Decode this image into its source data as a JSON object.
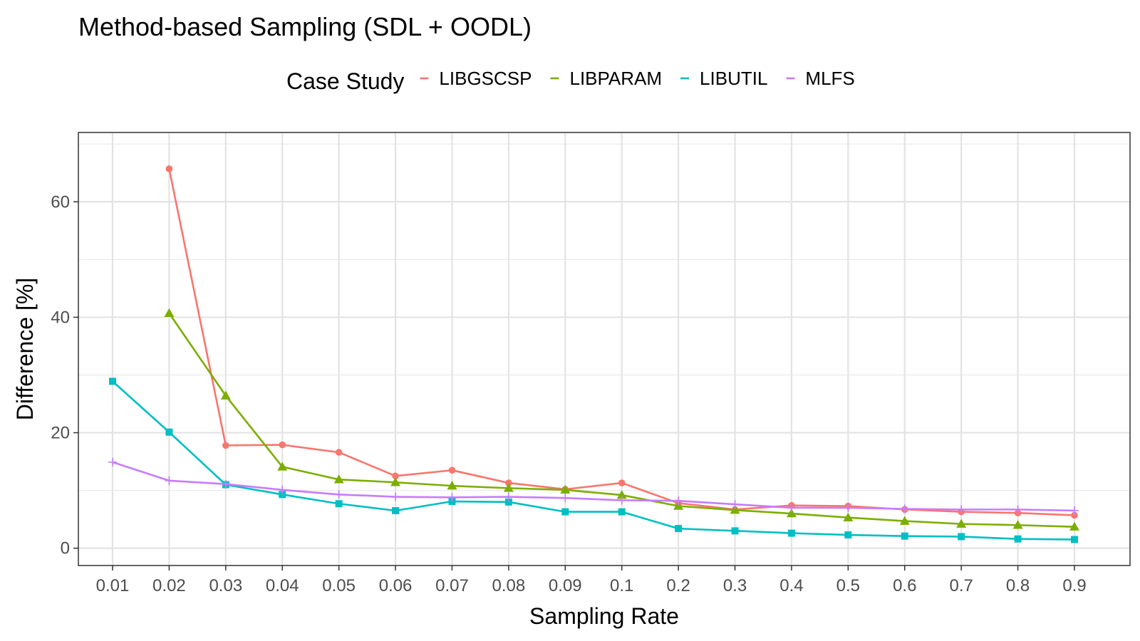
{
  "chart_data": {
    "type": "line",
    "title": "Method-based Sampling (SDL + OODL)",
    "xlabel": "Sampling Rate",
    "ylabel": "Difference [%]",
    "legend_title": "Case Study",
    "legend_position": "top",
    "grid": true,
    "x_scale": "categorical",
    "categories": [
      "0.01",
      "0.02",
      "0.03",
      "0.04",
      "0.05",
      "0.06",
      "0.07",
      "0.08",
      "0.09",
      "0.1",
      "0.2",
      "0.3",
      "0.4",
      "0.5",
      "0.6",
      "0.7",
      "0.8",
      "0.9"
    ],
    "ylim": [
      -3,
      72
    ],
    "yticks": [
      0,
      20,
      40,
      60
    ],
    "series": [
      {
        "name": "LIBGSCSP",
        "color": "#F8766D",
        "marker": "circle",
        "values": [
          null,
          65.7,
          17.8,
          17.9,
          16.6,
          12.5,
          13.5,
          11.3,
          10.2,
          11.3,
          7.8,
          6.7,
          7.4,
          7.3,
          6.7,
          6.3,
          6.1,
          5.7
        ]
      },
      {
        "name": "LIBPARAM",
        "color": "#7CAE00",
        "marker": "triangle",
        "values": [
          null,
          40.7,
          26.4,
          14.1,
          11.9,
          11.4,
          10.8,
          10.4,
          10.1,
          9.2,
          7.3,
          6.6,
          6.0,
          5.3,
          4.7,
          4.2,
          4.0,
          3.7
        ]
      },
      {
        "name": "LIBUTIL",
        "color": "#00BFC4",
        "marker": "square",
        "values": [
          28.9,
          20.1,
          11.0,
          9.3,
          7.7,
          6.5,
          8.1,
          8.0,
          6.3,
          6.3,
          3.4,
          3.0,
          2.6,
          2.3,
          2.1,
          2.0,
          1.6,
          1.5
        ]
      },
      {
        "name": "MLFS",
        "color": "#C77CFF",
        "marker": "plus",
        "values": [
          14.9,
          11.7,
          11.1,
          10.1,
          9.3,
          8.9,
          8.8,
          8.9,
          8.7,
          8.3,
          8.2,
          7.6,
          7.0,
          7.0,
          6.8,
          6.7,
          6.7,
          6.5
        ]
      }
    ]
  }
}
